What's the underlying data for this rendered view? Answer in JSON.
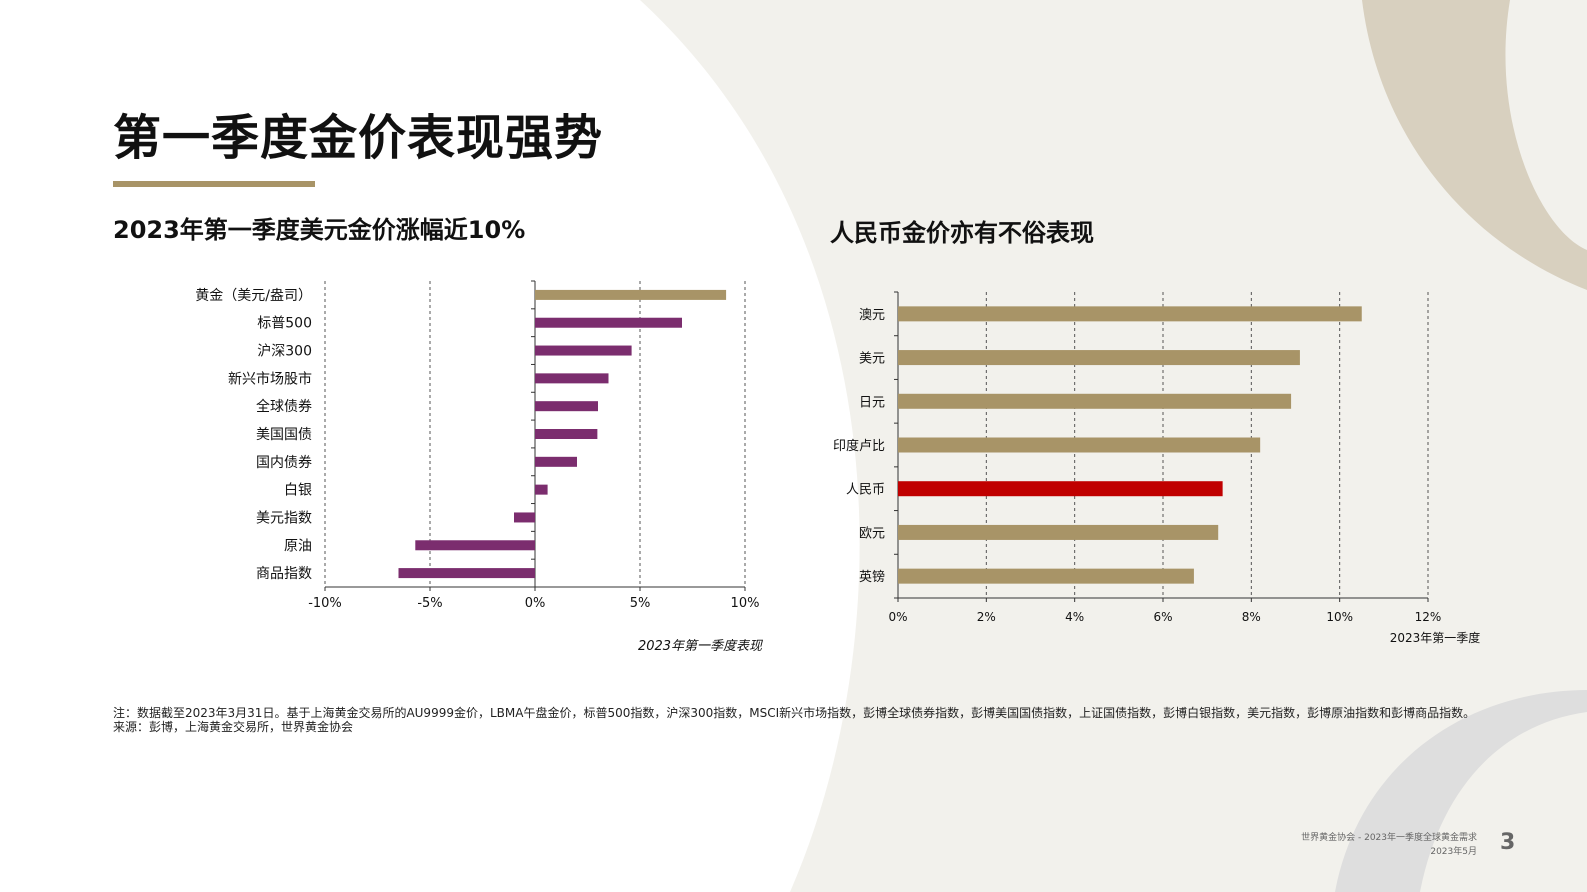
{
  "slide": {
    "title": "第一季度金价表现强势",
    "accent_color": "#A89467",
    "page_number": "3",
    "footer_line1": "世界黄金协会 - 2023年一季度全球黄金需求",
    "footer_line2": "2023年5月"
  },
  "left": {
    "subtitle": "2023年第一季度美元金价涨幅近10%"
  },
  "right": {
    "subtitle": "人民币金价亦有不俗表现"
  },
  "notes": {
    "note": "注：数据截至2023年3月31日。基于上海黄金交易所的AU9999金价，LBMA午盘金价，标普500指数，沪深300指数，MSCI新兴市场指数，彭博全球债券指数，彭博美国国债指数，上证国债指数，彭博白银指数，美元指数，彭博原油指数和彭博商品指数。",
    "source": "来源：彭博，上海黄金交易所，世界黄金协会"
  },
  "chart_data": [
    {
      "type": "bar",
      "orientation": "horizontal",
      "categories": [
        "黄金（美元/盎司）",
        "标普500",
        "沪深300",
        "新兴市场股市",
        "全球债券",
        "美国国债",
        "国内债券",
        "白银",
        "美元指数",
        "原油",
        "商品指数"
      ],
      "values": [
        9.1,
        7.0,
        4.6,
        3.5,
        3.0,
        2.97,
        2.0,
        0.6,
        -1.0,
        -5.7,
        -6.5
      ],
      "colors": [
        "#A89467",
        "#7B2D6E",
        "#7B2D6E",
        "#7B2D6E",
        "#7B2D6E",
        "#7B2D6E",
        "#7B2D6E",
        "#7B2D6E",
        "#7B2D6E",
        "#7B2D6E",
        "#7B2D6E"
      ],
      "xlim": [
        -10,
        10
      ],
      "xticks": [
        "-10%",
        "-5%",
        "0%",
        "5%",
        "10%"
      ],
      "xlabel": "2023年第一季度表现",
      "grid": "vertical dashed"
    },
    {
      "type": "bar",
      "orientation": "horizontal",
      "categories": [
        "澳元",
        "美元",
        "日元",
        "印度卢比",
        "人民币",
        "欧元",
        "英镑"
      ],
      "values": [
        10.5,
        9.1,
        8.9,
        8.2,
        7.35,
        7.25,
        6.7
      ],
      "colors": [
        "#A89467",
        "#A89467",
        "#A89467",
        "#A89467",
        "#C00000",
        "#A89467",
        "#A89467"
      ],
      "xlim": [
        0,
        12
      ],
      "xticks": [
        "0%",
        "2%",
        "4%",
        "6%",
        "8%",
        "10%",
        "12%"
      ],
      "xlabel": "2023年第一季度",
      "grid": "vertical dashed"
    }
  ]
}
